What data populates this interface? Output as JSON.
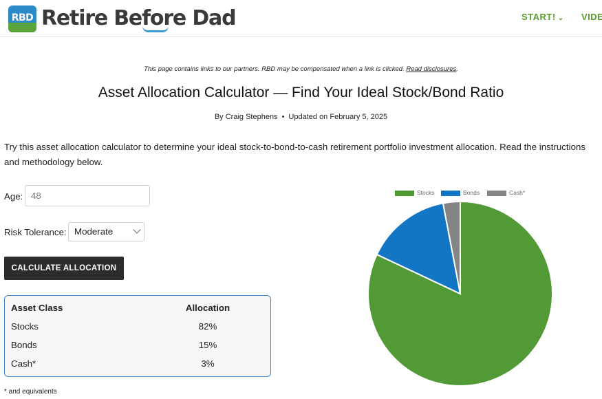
{
  "header": {
    "logo_badge_text": "RBD",
    "logo_text": "Retire Before Dad",
    "nav": [
      {
        "label": "START!"
      },
      {
        "label": "VIDE"
      }
    ]
  },
  "disclosure": {
    "text": "This page contains links to our partners. RBD may be compensated when a link is clicked.",
    "link": "Read disclosures",
    "suffix": "."
  },
  "article": {
    "title": "Asset Allocation Calculator — Find Your Ideal Stock/Bond Ratio",
    "author": "By Craig Stephens",
    "separator": "•",
    "updated": "Updated on February 5, 2025",
    "intro": "Try this asset allocation calculator to determine your ideal stock-to-bond-to-cash retirement portfolio investment allocation. Read the instructions and methodology below."
  },
  "form": {
    "age_label": "Age:",
    "age_value": "48",
    "risk_label": "Risk Tolerance:",
    "risk_value": "Moderate",
    "button_label": "Calculate Allocation"
  },
  "table": {
    "headers": [
      "Asset Class",
      "Allocation"
    ],
    "rows": [
      {
        "asset": "Stocks",
        "allocation": "82%"
      },
      {
        "asset": "Bonds",
        "allocation": "15%"
      },
      {
        "asset": "Cash*",
        "allocation": "3%"
      }
    ],
    "footnote": "* and equivalents"
  },
  "chart_data": {
    "type": "pie",
    "categories": [
      "Stocks",
      "Bonds",
      "Cash*"
    ],
    "values": [
      82,
      15,
      3
    ],
    "colors": [
      "#529a36",
      "#1276c4",
      "#858585"
    ],
    "legend_position": "top"
  },
  "colors": {
    "nav_accent": "#5a9a2e",
    "button_bg": "#2e2b2b",
    "table_border": "#3b86c6"
  }
}
